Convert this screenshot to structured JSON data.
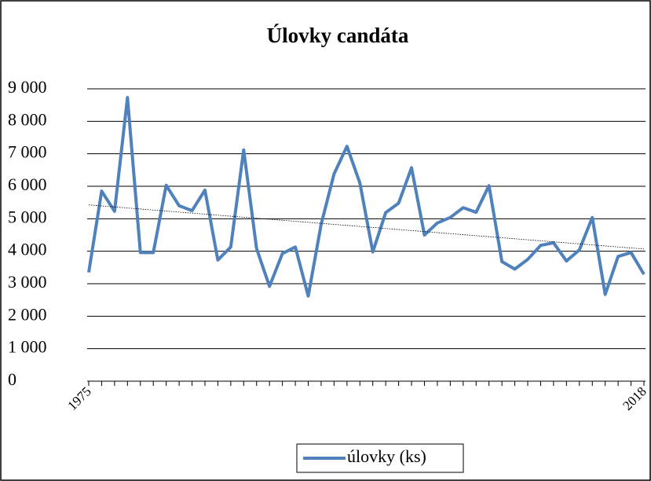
{
  "chart_data": {
    "type": "line",
    "title": "Úlovky candáta",
    "categories": [
      "1975",
      null,
      null,
      null,
      null,
      null,
      null,
      null,
      null,
      null,
      null,
      null,
      null,
      null,
      null,
      null,
      null,
      null,
      null,
      null,
      null,
      null,
      null,
      null,
      null,
      null,
      null,
      null,
      null,
      null,
      null,
      null,
      null,
      null,
      null,
      null,
      null,
      null,
      null,
      null,
      null,
      null,
      null,
      "2018"
    ],
    "series": [
      {
        "name": "úlovky (ks)",
        "color": "#4f81bd",
        "values": [
          3350,
          5850,
          5230,
          8730,
          3960,
          3960,
          6030,
          5400,
          5250,
          5880,
          3730,
          4130,
          7120,
          4080,
          2920,
          3930,
          4130,
          2620,
          4830,
          6380,
          7230,
          6100,
          3980,
          5190,
          5480,
          6570,
          4500,
          4870,
          5040,
          5340,
          5200,
          6020,
          3680,
          3450,
          3750,
          4180,
          4260,
          3700,
          4040,
          5040,
          2670,
          3840,
          3960,
          3290
        ]
      }
    ],
    "ylim": [
      0,
      9000
    ],
    "yticks": [
      {
        "value": 0,
        "label": "0"
      },
      {
        "value": 1000,
        "label": "1 000"
      },
      {
        "value": 2000,
        "label": "2 000"
      },
      {
        "value": 3000,
        "label": "3 000"
      },
      {
        "value": 4000,
        "label": "4 000"
      },
      {
        "value": 5000,
        "label": "5 000"
      },
      {
        "value": 6000,
        "label": "6 000"
      },
      {
        "value": 7000,
        "label": "7 000"
      },
      {
        "value": 8000,
        "label": "8 000"
      },
      {
        "value": 9000,
        "label": "9 000"
      }
    ],
    "grid": true,
    "trendline": "linear",
    "legend": "bottom"
  }
}
